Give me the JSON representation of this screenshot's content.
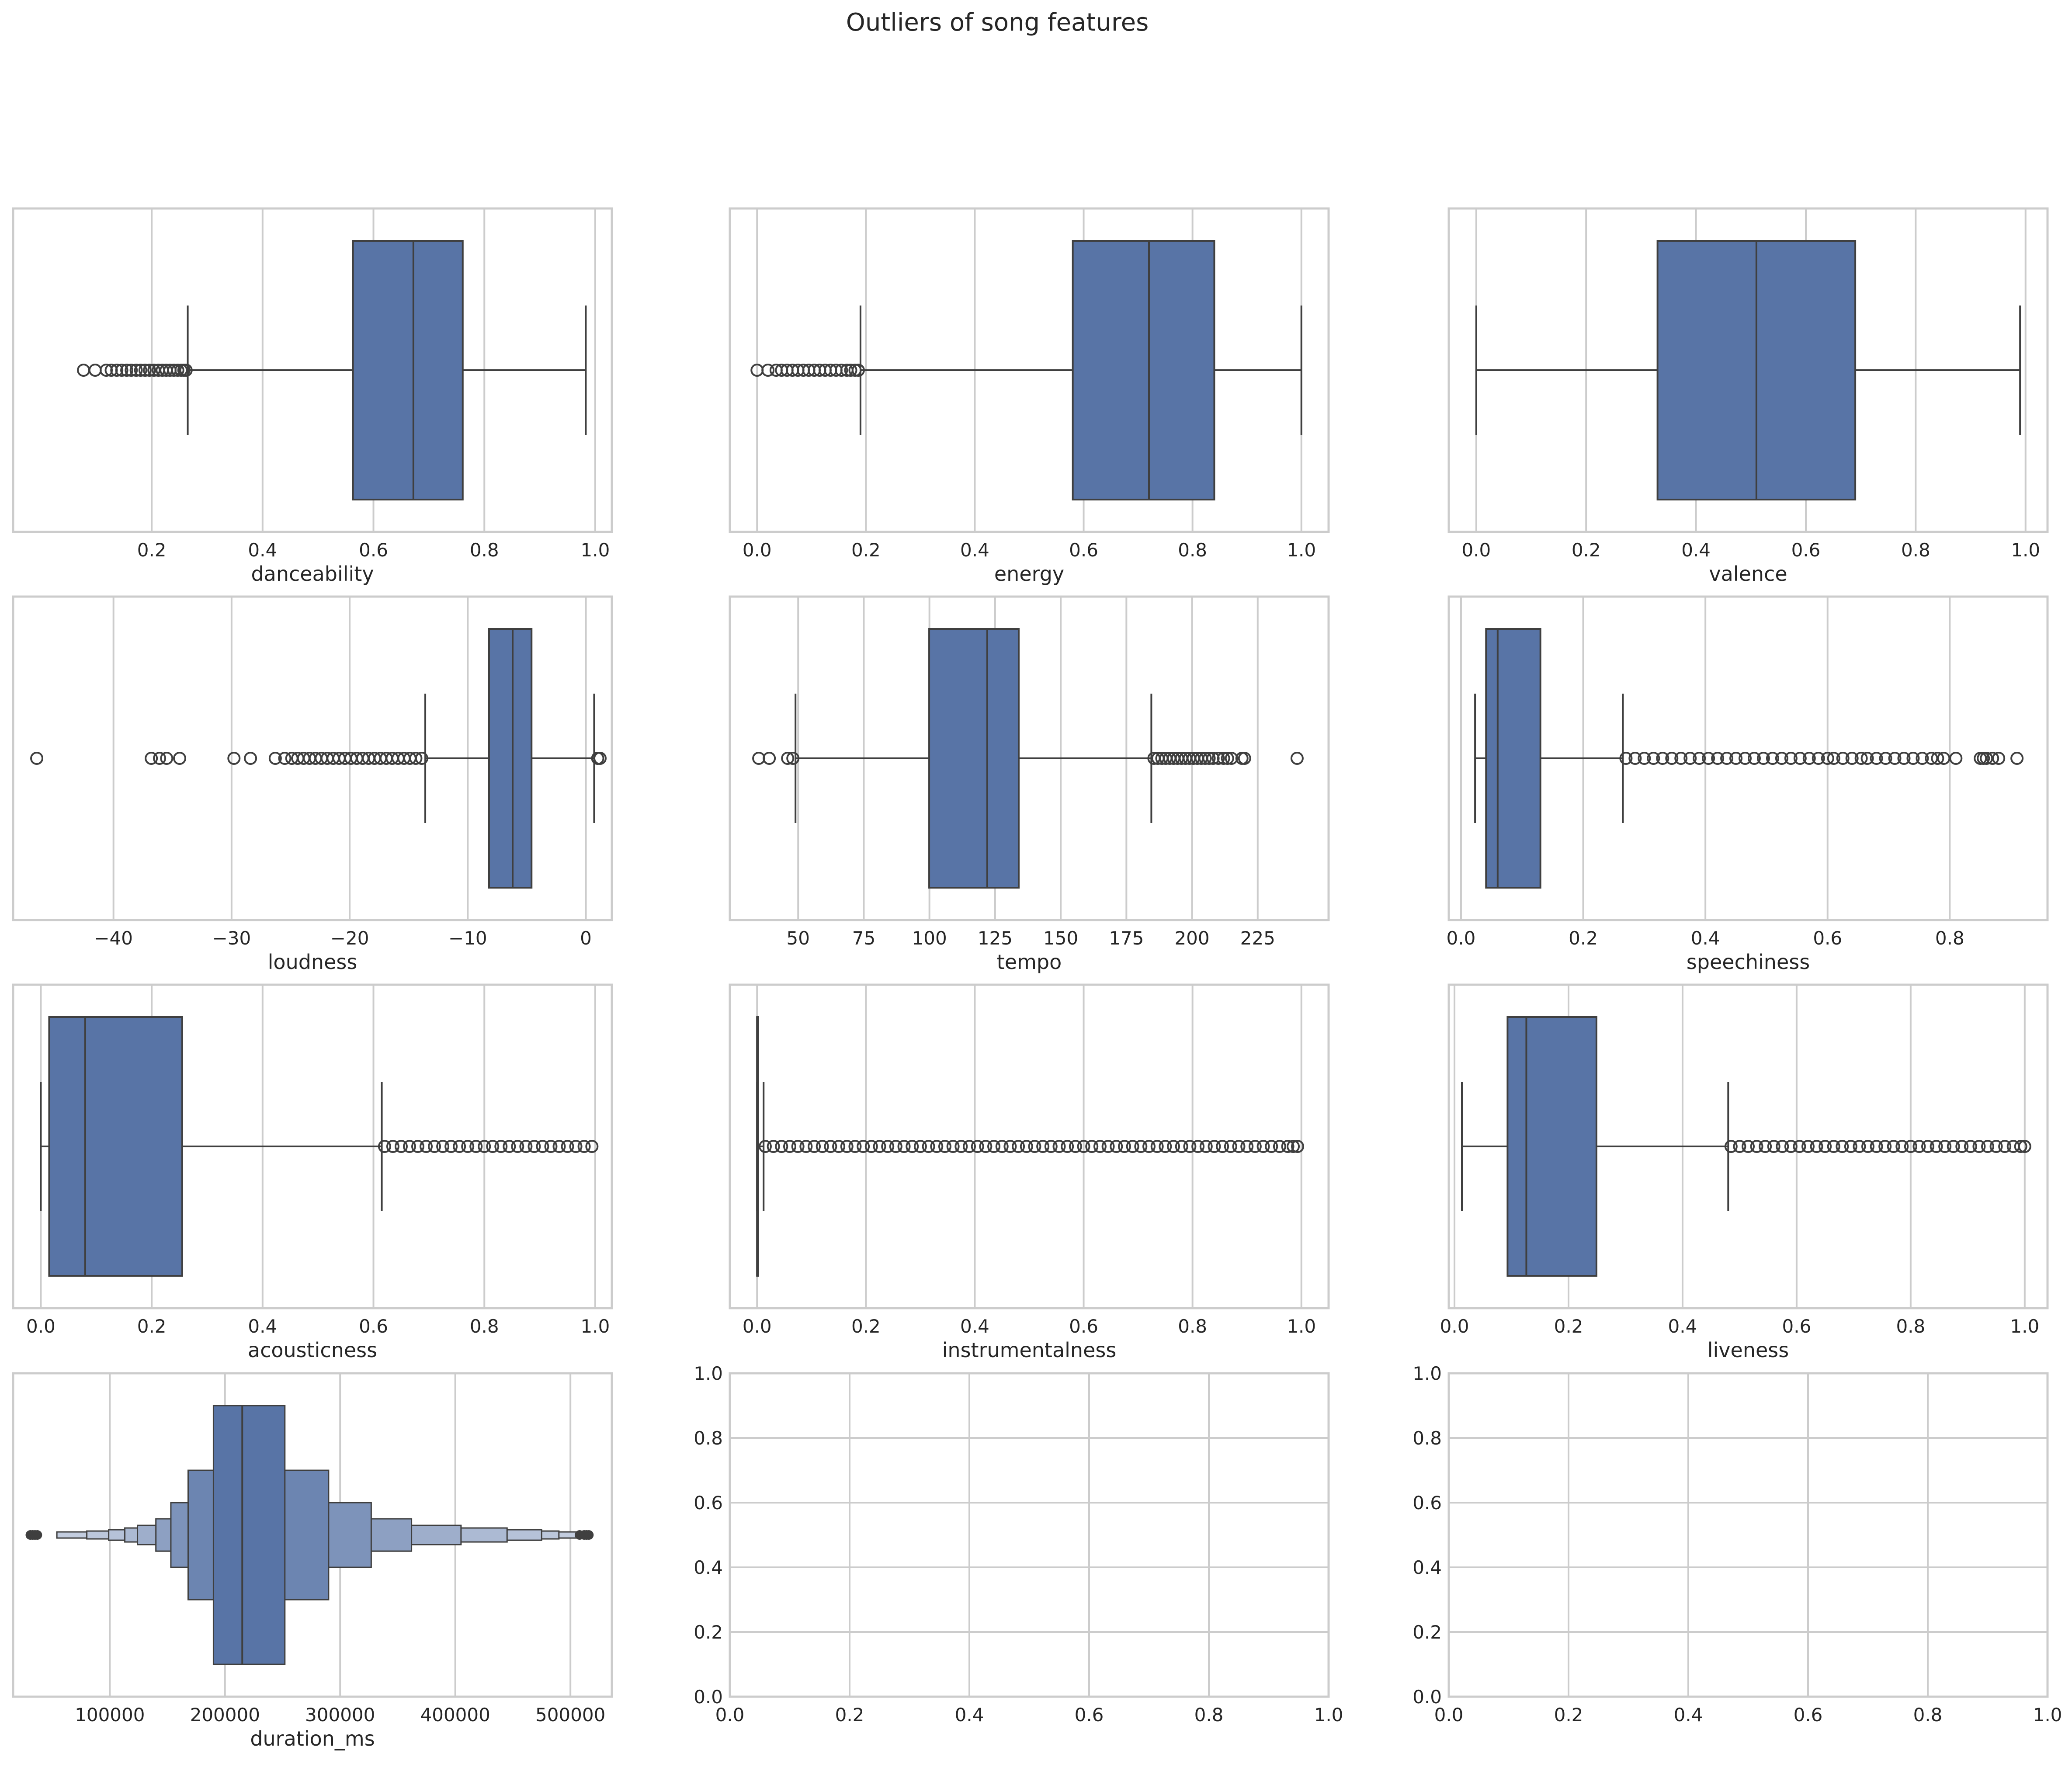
{
  "figure": {
    "title": "Outliers of song features",
    "colors": {
      "box": "#5874a6",
      "edge": "#3f3f3f",
      "grid": "#cccccc"
    }
  },
  "chart_data": [
    {
      "type": "box",
      "xlabel": "danceability",
      "xlim": [
        -0.05,
        1.03
      ],
      "ticks": [
        0.2,
        0.4,
        0.6,
        0.8,
        1.0
      ],
      "tick_labels": [
        "0.2",
        "0.4",
        "0.6",
        "0.8",
        "1.0"
      ],
      "stats": {
        "whislo": 0.265,
        "q1": 0.563,
        "median": 0.672,
        "q3": 0.761,
        "whishi": 0.983
      },
      "fliers": [
        0.077,
        0.098,
        0.118,
        0.127,
        0.137,
        0.146,
        0.155,
        0.163,
        0.172,
        0.18,
        0.188,
        0.196,
        0.204,
        0.212,
        0.219,
        0.226,
        0.233,
        0.24,
        0.247,
        0.253,
        0.258,
        0.262
      ]
    },
    {
      "type": "box",
      "xlabel": "energy",
      "xlim": [
        -0.05,
        1.05
      ],
      "ticks": [
        0.0,
        0.2,
        0.4,
        0.6,
        0.8,
        1.0
      ],
      "tick_labels": [
        "0.0",
        "0.2",
        "0.4",
        "0.6",
        "0.8",
        "1.0"
      ],
      "stats": {
        "whislo": 0.19,
        "q1": 0.58,
        "median": 0.72,
        "q3": 0.84,
        "whishi": 1.0
      },
      "fliers": [
        0.0,
        0.02,
        0.035,
        0.045,
        0.055,
        0.065,
        0.075,
        0.085,
        0.095,
        0.105,
        0.115,
        0.125,
        0.135,
        0.145,
        0.155,
        0.165,
        0.172,
        0.18,
        0.186
      ]
    },
    {
      "type": "box",
      "xlabel": "valence",
      "xlim": [
        -0.05,
        1.04
      ],
      "ticks": [
        0.0,
        0.2,
        0.4,
        0.6,
        0.8,
        1.0
      ],
      "tick_labels": [
        "0.0",
        "0.2",
        "0.4",
        "0.6",
        "0.8",
        "1.0"
      ],
      "stats": {
        "whislo": 0.0,
        "q1": 0.33,
        "median": 0.51,
        "q3": 0.69,
        "whishi": 0.99
      },
      "fliers": []
    },
    {
      "type": "box",
      "xlabel": "loudness",
      "xlim": [
        -48.5,
        2.2
      ],
      "ticks": [
        -40,
        -30,
        -20,
        -10,
        0
      ],
      "tick_labels": [
        "−40",
        "−30",
        "−20",
        "−10",
        "0"
      ],
      "stats": {
        "whislo": -13.6,
        "q1": -8.2,
        "median": -6.2,
        "q3": -4.6,
        "whishi": 0.7
      },
      "fliers": [
        -46.5,
        -36.8,
        -36.1,
        -35.5,
        -34.4,
        -29.8,
        -28.4,
        -26.3,
        -25.5,
        -24.9,
        -24.4,
        -23.9,
        -23.4,
        -22.9,
        -22.4,
        -21.9,
        -21.4,
        -20.9,
        -20.4,
        -19.9,
        -19.4,
        -18.9,
        -18.4,
        -17.9,
        -17.4,
        -16.9,
        -16.4,
        -15.9,
        -15.4,
        -14.9,
        -14.4,
        -13.9,
        1.0,
        1.2
      ]
    },
    {
      "type": "box",
      "xlabel": "tempo",
      "xlim": [
        24,
        252
      ],
      "ticks": [
        50,
        75,
        100,
        125,
        150,
        175,
        200,
        225
      ],
      "tick_labels": [
        "50",
        "75",
        "100",
        "125",
        "150",
        "175",
        "200",
        "225"
      ],
      "stats": {
        "whislo": 49,
        "q1": 99.9,
        "median": 122,
        "q3": 134,
        "whishi": 184.5
      },
      "fliers": [
        35,
        39,
        46,
        48,
        185.5,
        187,
        188.5,
        190,
        191.5,
        193,
        194.5,
        196,
        197.5,
        199,
        200.5,
        202,
        203.5,
        205,
        206.5,
        208,
        210,
        212,
        213.5,
        215,
        219,
        220,
        240
      ]
    },
    {
      "type": "box",
      "xlabel": "speechiness",
      "xlim": [
        -0.02,
        0.96
      ],
      "ticks": [
        0.0,
        0.2,
        0.4,
        0.6,
        0.8
      ],
      "tick_labels": [
        "0.0",
        "0.2",
        "0.4",
        "0.6",
        "0.8"
      ],
      "stats": {
        "whislo": 0.023,
        "q1": 0.041,
        "median": 0.06,
        "q3": 0.13,
        "whishi": 0.265
      },
      "fliers": [
        0.27,
        0.285,
        0.3,
        0.315,
        0.33,
        0.345,
        0.36,
        0.375,
        0.39,
        0.405,
        0.42,
        0.435,
        0.45,
        0.465,
        0.48,
        0.495,
        0.51,
        0.525,
        0.54,
        0.555,
        0.57,
        0.585,
        0.6,
        0.61,
        0.625,
        0.64,
        0.655,
        0.665,
        0.68,
        0.695,
        0.71,
        0.725,
        0.74,
        0.755,
        0.77,
        0.78,
        0.79,
        0.81,
        0.85,
        0.855,
        0.86,
        0.87,
        0.88,
        0.91
      ]
    },
    {
      "type": "box",
      "xlabel": "acousticness",
      "xlim": [
        -0.05,
        1.03
      ],
      "ticks": [
        0.0,
        0.2,
        0.4,
        0.6,
        0.8,
        1.0
      ],
      "tick_labels": [
        "0.0",
        "0.2",
        "0.4",
        "0.6",
        "0.8",
        "1.0"
      ],
      "stats": {
        "whislo": 0.0,
        "q1": 0.015,
        "median": 0.08,
        "q3": 0.255,
        "whishi": 0.615
      },
      "fliers": [
        0.62,
        0.635,
        0.65,
        0.665,
        0.68,
        0.695,
        0.71,
        0.725,
        0.74,
        0.755,
        0.77,
        0.785,
        0.8,
        0.815,
        0.83,
        0.845,
        0.86,
        0.875,
        0.89,
        0.905,
        0.92,
        0.935,
        0.95,
        0.965,
        0.98,
        0.994
      ]
    },
    {
      "type": "box",
      "xlabel": "instrumentalness",
      "xlim": [
        -0.05,
        1.05
      ],
      "ticks": [
        0.0,
        0.2,
        0.4,
        0.6,
        0.8,
        1.0
      ],
      "tick_labels": [
        "0.0",
        "0.2",
        "0.4",
        "0.6",
        "0.8",
        "1.0"
      ],
      "stats": {
        "whislo": 0.0,
        "q1": 0.0,
        "median": 0.0,
        "q3": 0.002,
        "whishi": 0.012
      },
      "fliers": [
        0.015,
        0.03,
        0.045,
        0.06,
        0.075,
        0.09,
        0.105,
        0.12,
        0.135,
        0.15,
        0.165,
        0.18,
        0.195,
        0.21,
        0.225,
        0.24,
        0.255,
        0.27,
        0.285,
        0.3,
        0.315,
        0.33,
        0.345,
        0.36,
        0.375,
        0.39,
        0.405,
        0.42,
        0.435,
        0.45,
        0.465,
        0.48,
        0.495,
        0.51,
        0.525,
        0.54,
        0.555,
        0.57,
        0.585,
        0.6,
        0.615,
        0.63,
        0.645,
        0.66,
        0.675,
        0.69,
        0.705,
        0.72,
        0.735,
        0.75,
        0.765,
        0.78,
        0.795,
        0.81,
        0.825,
        0.84,
        0.855,
        0.87,
        0.885,
        0.9,
        0.915,
        0.93,
        0.945,
        0.96,
        0.975,
        0.985,
        0.993
      ]
    },
    {
      "type": "box",
      "xlabel": "liveness",
      "xlim": [
        -0.01,
        1.04
      ],
      "ticks": [
        0.0,
        0.2,
        0.4,
        0.6,
        0.8,
        1.0
      ],
      "tick_labels": [
        "0.0",
        "0.2",
        "0.4",
        "0.6",
        "0.8",
        "1.0"
      ],
      "stats": {
        "whislo": 0.013,
        "q1": 0.093,
        "median": 0.126,
        "q3": 0.249,
        "whishi": 0.48
      },
      "fliers": [
        0.485,
        0.5,
        0.515,
        0.53,
        0.545,
        0.56,
        0.575,
        0.59,
        0.605,
        0.62,
        0.635,
        0.65,
        0.665,
        0.68,
        0.695,
        0.71,
        0.725,
        0.74,
        0.755,
        0.77,
        0.785,
        0.8,
        0.815,
        0.83,
        0.845,
        0.86,
        0.875,
        0.89,
        0.905,
        0.92,
        0.935,
        0.95,
        0.965,
        0.98,
        0.993,
        1.0
      ]
    },
    {
      "type": "boxen",
      "xlabel": "duration_ms",
      "xlim": [
        16000,
        536000
      ],
      "ticks": [
        100000,
        200000,
        300000,
        400000,
        500000
      ],
      "tick_labels": [
        "100000",
        "200000",
        "300000",
        "400000",
        "500000"
      ],
      "median": 215000,
      "levels": [
        [
          190000,
          252000
        ],
        [
          168000,
          290000
        ],
        [
          153000,
          327000
        ],
        [
          140000,
          362000
        ],
        [
          124000,
          405000
        ],
        [
          113000,
          445000
        ],
        [
          99000,
          475000
        ],
        [
          80000,
          490000
        ],
        [
          54000,
          505000
        ]
      ],
      "fliers": [
        31000,
        33000,
        35000,
        37000,
        508000,
        512000,
        514000,
        516000
      ]
    },
    {
      "type": "empty",
      "xlim": [
        0,
        1
      ],
      "ylim": [
        0,
        1
      ],
      "xticks": [
        "0.0",
        "0.2",
        "0.4",
        "0.6",
        "0.8",
        "1.0"
      ],
      "yticks": [
        "0.0",
        "0.2",
        "0.4",
        "0.6",
        "0.8",
        "1.0"
      ]
    },
    {
      "type": "empty",
      "xlim": [
        0,
        1
      ],
      "ylim": [
        0,
        1
      ],
      "xticks": [
        "0.0",
        "0.2",
        "0.4",
        "0.6",
        "0.8",
        "1.0"
      ],
      "yticks": [
        "0.0",
        "0.2",
        "0.4",
        "0.6",
        "0.8",
        "1.0"
      ]
    }
  ]
}
